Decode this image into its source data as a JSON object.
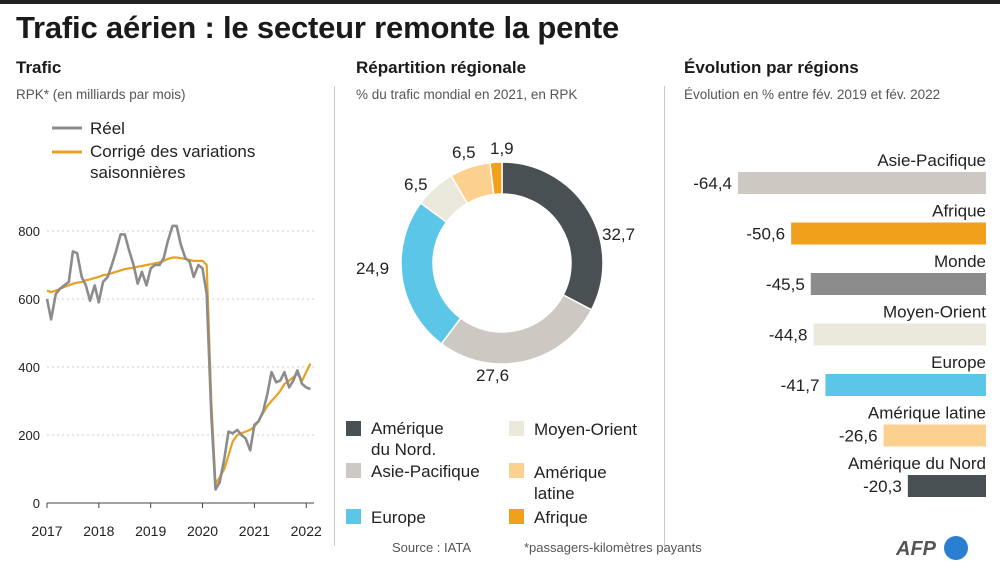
{
  "title": "Trafic aérien : le secteur remonte la pente",
  "panels": {
    "trend": {
      "title": "Trafic",
      "subtitle": "RPK* (en milliards par mois)"
    },
    "donut": {
      "title": "Répartition régionale",
      "subtitle": "% du trafic mondial en 2021, en RPK"
    },
    "bars": {
      "title": "Évolution par régions",
      "subtitle": "Évolution en % entre fév. 2019 et fév. 2022"
    }
  },
  "footer": {
    "source": "Source : IATA",
    "note": "*passagers-kilomètres payants",
    "logo": "AFP"
  },
  "colors": {
    "actual": "#8c8c8c",
    "adjusted": "#e8a020",
    "north_america": "#485053",
    "asia_pacific": "#cdc8c1",
    "europe": "#5bc6e8",
    "middle_east": "#ebe9dc",
    "latin_america": "#fcd08e",
    "africa": "#f0a01a",
    "world": "#8c8c8c",
    "logo": "#2a7fd0"
  },
  "chart_data": [
    {
      "type": "line",
      "ylim": [
        0,
        850
      ],
      "xlim": [
        2017,
        2022.15
      ],
      "yticks": [
        0,
        200,
        400,
        600,
        800
      ],
      "xticks": [
        2017,
        2018,
        2019,
        2020,
        2021,
        2022
      ],
      "series": [
        {
          "name": "Réel",
          "color_key": "actual",
          "x": [
            2017.0,
            2017.08,
            2017.17,
            2017.25,
            2017.33,
            2017.42,
            2017.5,
            2017.58,
            2017.67,
            2017.75,
            2017.83,
            2017.92,
            2018.0,
            2018.08,
            2018.17,
            2018.25,
            2018.33,
            2018.42,
            2018.5,
            2018.58,
            2018.67,
            2018.75,
            2018.83,
            2018.92,
            2019.0,
            2019.08,
            2019.17,
            2019.25,
            2019.33,
            2019.42,
            2019.5,
            2019.58,
            2019.67,
            2019.75,
            2019.83,
            2019.92,
            2020.0,
            2020.08,
            2020.17,
            2020.25,
            2020.33,
            2020.42,
            2020.5,
            2020.58,
            2020.67,
            2020.75,
            2020.83,
            2020.92,
            2021.0,
            2021.08,
            2021.17,
            2021.25,
            2021.33,
            2021.42,
            2021.5,
            2021.58,
            2021.67,
            2021.75,
            2021.83,
            2021.92,
            2022.0,
            2022.08
          ],
          "values": [
            600,
            540,
            615,
            630,
            640,
            650,
            740,
            735,
            665,
            640,
            595,
            640,
            590,
            650,
            665,
            700,
            740,
            790,
            790,
            745,
            700,
            645,
            680,
            640,
            690,
            700,
            700,
            720,
            770,
            815,
            815,
            760,
            720,
            710,
            665,
            700,
            690,
            615,
            260,
            40,
            60,
            130,
            210,
            205,
            215,
            200,
            190,
            155,
            230,
            240,
            270,
            320,
            385,
            355,
            360,
            385,
            340,
            360,
            390,
            350,
            340,
            335
          ]
        },
        {
          "name": "Corrigé des variations saisonnières",
          "color_key": "adjusted",
          "x": [
            2017.0,
            2017.08,
            2017.17,
            2017.25,
            2017.33,
            2017.42,
            2017.5,
            2017.58,
            2017.67,
            2017.75,
            2017.83,
            2017.92,
            2018.0,
            2018.08,
            2018.17,
            2018.25,
            2018.33,
            2018.42,
            2018.5,
            2018.58,
            2018.67,
            2018.75,
            2018.83,
            2018.92,
            2019.0,
            2019.08,
            2019.17,
            2019.25,
            2019.33,
            2019.42,
            2019.5,
            2019.58,
            2019.67,
            2019.75,
            2019.83,
            2019.92,
            2020.0,
            2020.08,
            2020.17,
            2020.25,
            2020.33,
            2020.42,
            2020.5,
            2020.58,
            2020.67,
            2020.75,
            2020.83,
            2020.92,
            2021.0,
            2021.08,
            2021.17,
            2021.25,
            2021.33,
            2021.42,
            2021.5,
            2021.58,
            2021.67,
            2021.75,
            2021.83,
            2021.92,
            2022.0,
            2022.08
          ],
          "values": [
            625,
            620,
            625,
            630,
            635,
            640,
            645,
            648,
            650,
            655,
            658,
            662,
            665,
            670,
            672,
            676,
            680,
            684,
            688,
            690,
            692,
            695,
            697,
            700,
            702,
            705,
            708,
            712,
            718,
            722,
            722,
            720,
            718,
            715,
            712,
            712,
            712,
            700,
            300,
            55,
            75,
            100,
            140,
            180,
            200,
            205,
            210,
            215,
            225,
            240,
            265,
            285,
            300,
            315,
            330,
            350,
            360,
            370,
            380,
            360,
            385,
            410
          ]
        }
      ]
    },
    {
      "type": "pie",
      "categories": [
        "Amérique du Nord.",
        "Asie-Pacifique",
        "Europe",
        "Moyen-Orient",
        "Amérique latine",
        "Afrique"
      ],
      "values": [
        32.7,
        27.6,
        24.9,
        6.5,
        6.5,
        1.9
      ],
      "labels": [
        "32,7",
        "27,6",
        "24,9",
        "6,5",
        "6,5",
        "1,9"
      ],
      "color_keys": [
        "north_america",
        "asia_pacific",
        "europe",
        "middle_east",
        "latin_america",
        "africa"
      ],
      "legend": "bottom"
    },
    {
      "type": "bar",
      "categories": [
        "Asie-Pacifique",
        "Afrique",
        "Monde",
        "Moyen-Orient",
        "Europe",
        "Amérique latine",
        "Amérique du Nord"
      ],
      "values": [
        -64.4,
        -50.6,
        -45.5,
        -44.8,
        -41.7,
        -26.6,
        -20.3
      ],
      "labels": [
        "-64,4",
        "-50,6",
        "-45,5",
        "-44,8",
        "-41,7",
        "-26,6",
        "-20,3"
      ],
      "color_keys": [
        "asia_pacific",
        "africa",
        "world",
        "middle_east",
        "europe",
        "latin_america",
        "north_america"
      ],
      "xlim": [
        -64.4,
        0
      ]
    }
  ]
}
